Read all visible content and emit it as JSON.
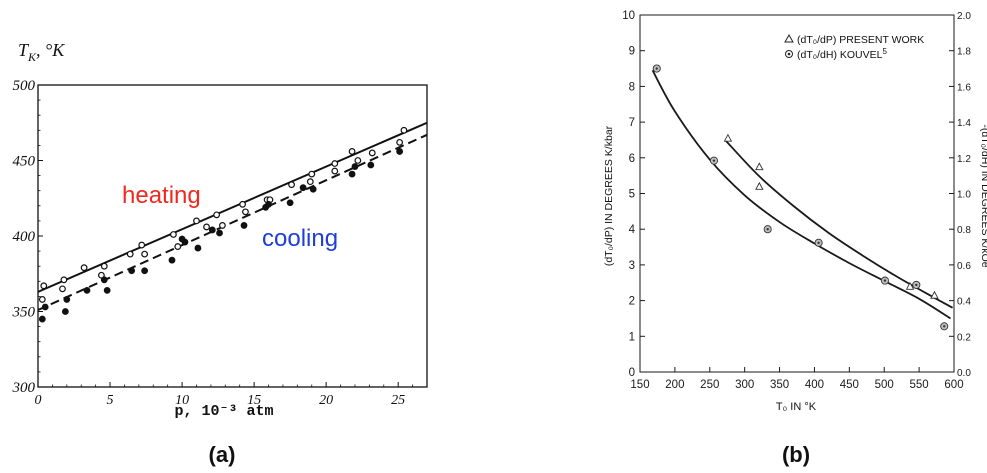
{
  "panel_a": {
    "caption": "(a)",
    "y_label_main": "T",
    "y_label_sub": "K",
    "y_label_unit": ", °K",
    "x_label": "p, 10⁻³ atm",
    "heating_label": "heating",
    "cooling_label": "cooling",
    "colors": {
      "heating": "#ee2a1e",
      "cooling": "#1f3ddb",
      "ink": "#111111"
    }
  },
  "panel_b": {
    "caption": "(b)",
    "y_label": "(dT₀/dP) IN DEGREES K/kbar",
    "y2_label": "-(dT₀/dH) IN DEGREES K/kOe",
    "x_label": "T₀ IN °K",
    "legend_present": "(dT₀/dP) PRESENT WORK",
    "legend_kouvel": "(dT₀/dH) KOUVEL",
    "legend_kouvel_ref": "5"
  },
  "chart_data": [
    {
      "type": "scatter",
      "panel": "a",
      "xlim": [
        0,
        27
      ],
      "ylim": [
        300,
        500
      ],
      "xticks": [
        0,
        5,
        10,
        15,
        20,
        25
      ],
      "yticks": [
        300,
        350,
        400,
        450,
        500
      ],
      "series": [
        {
          "name": "heating",
          "marker": "open-circle",
          "x": [
            0.4,
            1.8,
            3.2,
            4.6,
            6.4,
            7.2,
            9.4,
            11,
            11.7,
            12.4,
            14.2,
            15.9,
            17.6,
            19,
            20.6,
            21.8,
            23.2,
            25.4
          ],
          "y": [
            367,
            371,
            379,
            380,
            388,
            394,
            401,
            410,
            406,
            414,
            421,
            424,
            434,
            441,
            448,
            456,
            455,
            470
          ]
        },
        {
          "name": "heating",
          "marker": "open-circle",
          "x": [
            0.3,
            1.7,
            4.4,
            7.4,
            9.7,
            12.8,
            14.4,
            16.1,
            18.9,
            20.6,
            22.2,
            25.1
          ],
          "y": [
            358,
            365,
            374,
            388,
            393,
            407,
            416,
            424,
            436,
            443,
            450,
            462
          ]
        },
        {
          "name": "cooling",
          "marker": "filled-circle",
          "x": [
            0.5,
            1.9,
            3.4,
            4.8,
            6.5,
            7.4,
            9.3,
            10.2,
            11.1,
            12.6,
            14.3,
            16,
            17.5,
            19.1,
            21.8,
            23.1,
            25.1
          ],
          "y": [
            353,
            350,
            364,
            364,
            377,
            377,
            384,
            396,
            392,
            402,
            407,
            421,
            422,
            431,
            441,
            447,
            456
          ]
        },
        {
          "name": "cooling",
          "marker": "filled-circle",
          "x": [
            0.3,
            2.0,
            4.6,
            10.0,
            12.1,
            15.8,
            18.4,
            22.0
          ],
          "y": [
            345,
            358,
            371,
            398,
            404,
            419,
            432,
            446
          ]
        }
      ],
      "fit_lines": [
        {
          "name": "heating",
          "style": "solid",
          "x": [
            0,
            27
          ],
          "y": [
            363,
            475
          ]
        },
        {
          "name": "cooling",
          "style": "dashed",
          "x": [
            0,
            27
          ],
          "y": [
            351,
            467
          ]
        }
      ]
    },
    {
      "type": "scatter",
      "panel": "b",
      "xlim": [
        150,
        600
      ],
      "ylim": [
        0,
        10
      ],
      "y2lim": [
        0,
        2.0
      ],
      "xticks": [
        150,
        200,
        250,
        300,
        350,
        400,
        450,
        500,
        550,
        600
      ],
      "yticks": [
        0,
        1,
        2,
        3,
        4,
        5,
        6,
        7,
        8,
        9,
        10
      ],
      "y2ticks": [
        0,
        0.2,
        0.4,
        0.6,
        0.8,
        1.0,
        1.2,
        1.4,
        1.6,
        1.8,
        2.0
      ],
      "legend_position": "top-right",
      "series": [
        {
          "name": "(dT₀/dP) PRESENT WORK",
          "marker": "open-triangle",
          "axis": "left",
          "x": [
            276,
            321,
            321,
            537,
            572
          ],
          "y": [
            6.55,
            5.75,
            5.2,
            2.4,
            2.15
          ]
        },
        {
          "name": "(dT₀/dH) KOUVEL",
          "marker": "dotted-circle",
          "axis": "right",
          "x": [
            174,
            256,
            333,
            406,
            501,
            546,
            586
          ],
          "y": [
            1.7,
            1.184,
            0.8,
            0.724,
            0.512,
            0.488,
            0.256
          ]
        }
      ],
      "curves": [
        {
          "name": "(dT₀/dH) KOUVEL",
          "axis": "left",
          "x": [
            168,
            200,
            250,
            300,
            350,
            400,
            450,
            500,
            550,
            595
          ],
          "y": [
            8.45,
            7.3,
            5.95,
            4.95,
            4.2,
            3.6,
            3.05,
            2.55,
            2.05,
            1.5
          ]
        },
        {
          "name": "(dT₀/dP) PRESENT WORK",
          "axis": "left",
          "x": [
            272,
            320,
            370,
            420,
            470,
            520,
            570,
            598
          ],
          "y": [
            6.5,
            5.5,
            4.65,
            3.9,
            3.25,
            2.65,
            2.1,
            1.8
          ]
        }
      ]
    }
  ]
}
